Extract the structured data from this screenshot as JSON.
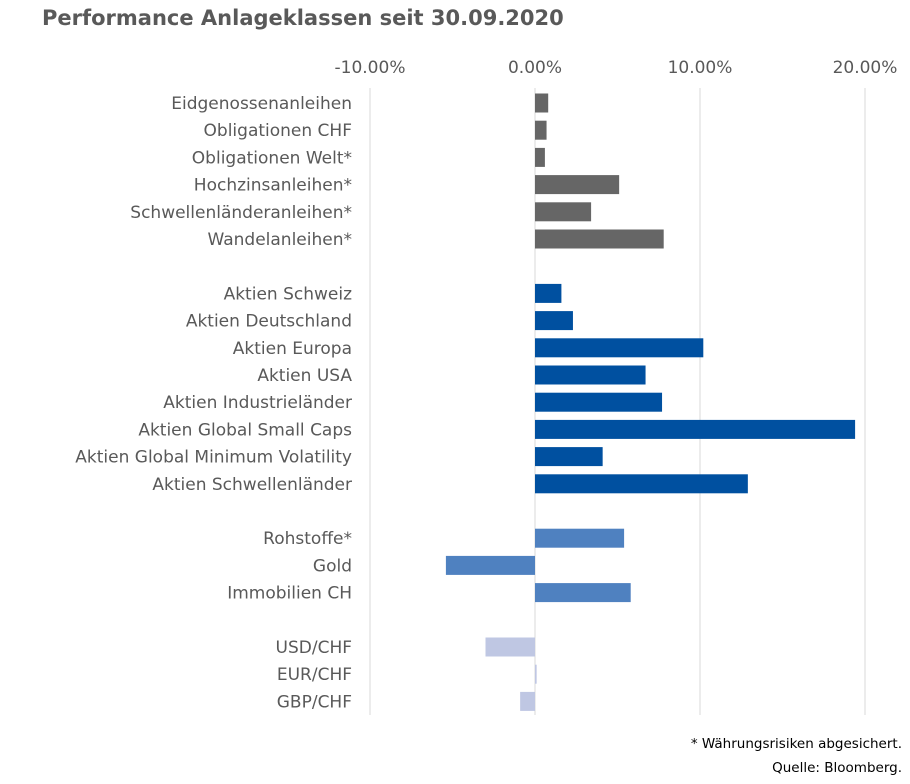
{
  "title": "Performance Anlageklassen seit 30.09.2020",
  "footnotes": {
    "hedged": "* Währungsrisiken abgesichert.",
    "source": "Quelle: Bloomberg."
  },
  "colors": {
    "bonds": "#666666",
    "equities": "#0050a0",
    "alternatives": "#4f81c0",
    "currencies": "#bfc7e3"
  },
  "chart_data": {
    "type": "bar",
    "orientation": "horizontal",
    "xlim": [
      -0.1,
      0.2
    ],
    "xticks": [
      -0.1,
      0.0,
      0.1,
      0.2
    ],
    "xtick_labels": [
      "-10.00%",
      "0.00%",
      "10.00%",
      "20.00%"
    ],
    "x_axis_position": "top",
    "grid": true,
    "groups": [
      {
        "color_key": "bonds",
        "categories": [
          "Eidgenossenanleihen",
          "Obligationen CHF",
          "Obligationen Welt*",
          "Hochzinsanleihen*",
          "Schwellenländeranleihen*",
          "Wandelanleihen*"
        ],
        "values": [
          0.008,
          0.007,
          0.006,
          0.051,
          0.034,
          0.078
        ]
      },
      {
        "color_key": "equities",
        "categories": [
          "Aktien Schweiz",
          "Aktien Deutschland",
          "Aktien Europa",
          "Aktien USA",
          "Aktien Industrieländer",
          "Aktien Global Small Caps",
          "Aktien Global Minimum Volatility",
          "Aktien Schwellenländer"
        ],
        "values": [
          0.016,
          0.023,
          0.102,
          0.067,
          0.077,
          0.194,
          0.041,
          0.129
        ]
      },
      {
        "color_key": "alternatives",
        "categories": [
          "Rohstoffe*",
          "Gold",
          "Immobilien CH"
        ],
        "values": [
          0.054,
          -0.054,
          0.058
        ]
      },
      {
        "color_key": "currencies",
        "categories": [
          "USD/CHF",
          "EUR/CHF",
          "GBP/CHF"
        ],
        "values": [
          -0.03,
          0.001,
          -0.009
        ]
      }
    ]
  }
}
